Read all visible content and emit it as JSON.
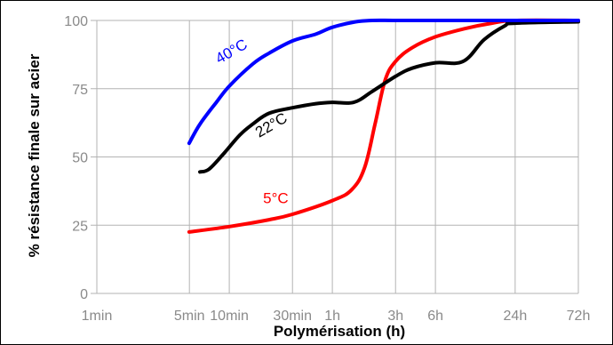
{
  "chart_data": {
    "type": "line",
    "title": "",
    "xlabel": "Polymérisation (h)",
    "ylabel": "% résistance finale sur acier",
    "x_scale": "log",
    "x_ticks": [
      {
        "label": "1min",
        "hours": 0.016667
      },
      {
        "label": "5min",
        "hours": 0.083333
      },
      {
        "label": "10min",
        "hours": 0.166667
      },
      {
        "label": "30min",
        "hours": 0.5
      },
      {
        "label": "1h",
        "hours": 1
      },
      {
        "label": "3h",
        "hours": 3
      },
      {
        "label": "6h",
        "hours": 6
      },
      {
        "label": "24h",
        "hours": 24
      },
      {
        "label": "72h",
        "hours": 72
      }
    ],
    "y_ticks": [
      0,
      25,
      50,
      75,
      100
    ],
    "ylim": [
      0,
      100
    ],
    "grid": true,
    "series": [
      {
        "name": "40°C",
        "color": "#0000ff",
        "x": [
          0.083,
          0.1,
          0.133,
          0.167,
          0.25,
          0.333,
          0.5,
          0.75,
          1,
          1.5,
          2,
          3,
          6,
          24,
          72
        ],
        "y": [
          55,
          62,
          70,
          76,
          84,
          88,
          92.5,
          95,
          97.5,
          99.5,
          100,
          100,
          100,
          100,
          100
        ]
      },
      {
        "name": "22°C",
        "color": "#000000",
        "x": [
          0.1,
          0.117,
          0.15,
          0.2,
          0.25,
          0.333,
          0.5,
          0.75,
          1,
          1.45,
          2,
          3,
          4,
          6,
          9.7,
          14,
          20,
          24,
          72
        ],
        "y": [
          44.5,
          45.5,
          51,
          58,
          62,
          66,
          68,
          69.5,
          70,
          70,
          74,
          79.5,
          82.5,
          84.5,
          85,
          93,
          98,
          99,
          99.5
        ]
      },
      {
        "name": "5°C",
        "color": "#ff0000",
        "x": [
          0.083,
          0.167,
          0.333,
          0.5,
          1,
          1.4,
          1.75,
          2.1,
          2.5,
          3,
          4,
          6,
          10,
          16,
          24,
          72
        ],
        "y": [
          22.5,
          24.5,
          27,
          29,
          34,
          38,
          46,
          62,
          78,
          85,
          90,
          94,
          97,
          99,
          100,
          100
        ]
      }
    ]
  }
}
